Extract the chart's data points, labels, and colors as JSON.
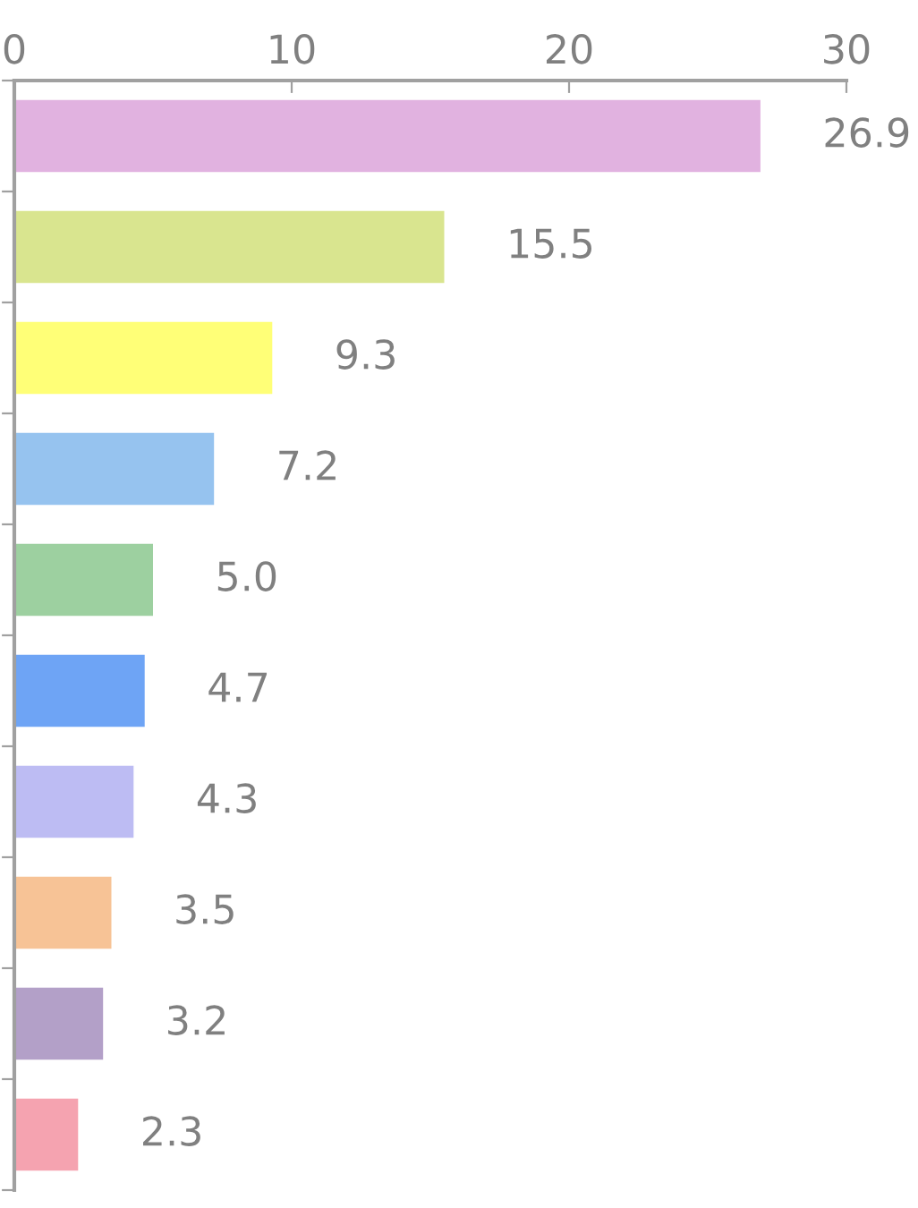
{
  "chart_data": {
    "type": "bar",
    "orientation": "horizontal",
    "categories": [
      null,
      null,
      null,
      null,
      null,
      null,
      null,
      null,
      null,
      null
    ],
    "values": [
      26.9,
      15.5,
      9.3,
      7.2,
      5.0,
      4.7,
      4.3,
      3.5,
      3.2,
      2.3
    ],
    "value_labels": [
      "26.9",
      "15.5",
      "9.3",
      "7.2",
      "5.0",
      "4.7",
      "4.3",
      "3.5",
      "3.2",
      "2.3"
    ],
    "colors": [
      "#e1b2e0",
      "#d9e58f",
      "#ffff77",
      "#96c3ef",
      "#9dd0a0",
      "#6ea4f5",
      "#bdbcf3",
      "#f7c396",
      "#b3a0c8",
      "#f5a3b0"
    ],
    "xlim": [
      0,
      30
    ],
    "xticks": [
      0,
      10,
      20,
      30
    ],
    "grid": false,
    "legend": false
  }
}
